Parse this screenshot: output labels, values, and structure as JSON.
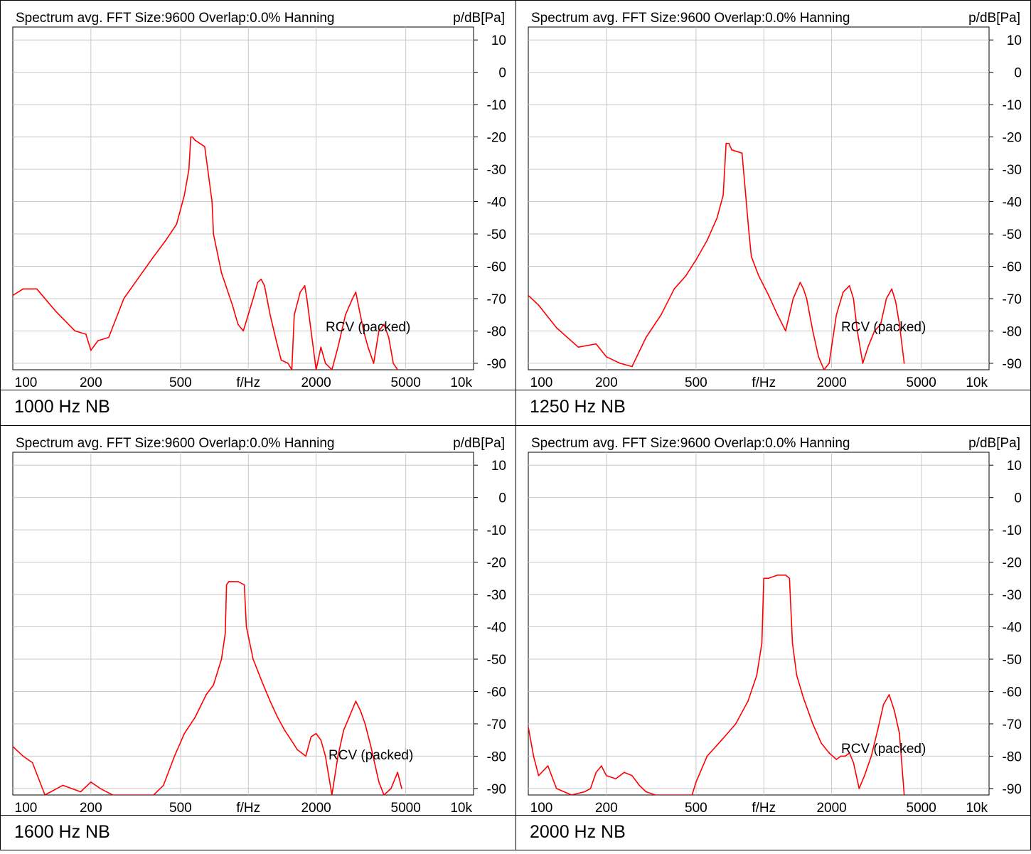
{
  "layout": {
    "captions": [
      "1000 Hz NB",
      "1250 Hz NB",
      "1600 Hz NB",
      "2000 Hz NB"
    ]
  },
  "chart_data": [
    {
      "type": "line",
      "caption": "1000 Hz NB",
      "title": "Spectrum avg.  FFT Size:9600  Overlap:0.0%  Hanning",
      "ylabel": "p/dB[Pa]",
      "xlabel": "f/Hz",
      "xscale": "log",
      "xlim": [
        90,
        10000
      ],
      "ylim": [
        -92,
        14
      ],
      "xticks": [
        "100",
        "200",
        "500",
        "2000",
        "5000",
        "10k"
      ],
      "yticks": [
        "10",
        "0",
        "-10",
        "-20",
        "-30",
        "-40",
        "-50",
        "-60",
        "-70",
        "-80",
        "-90"
      ],
      "grid": true,
      "annotation": "RCV (packed)",
      "line_color": "#ff0000",
      "series": [
        {
          "x": [
            90,
            100,
            115,
            140,
            170,
            190,
            200,
            215,
            240,
            280,
            330,
            380,
            430,
            480,
            520,
            545,
            555,
            565,
            580,
            640,
            690,
            700,
            760,
            850,
            900,
            950,
            1050,
            1100,
            1140,
            1180,
            1250,
            1330,
            1400,
            1500,
            1560,
            1600,
            1700,
            1780,
            1820,
            1900,
            2000,
            2100,
            2200,
            2350,
            2500,
            2700,
            2900,
            3000,
            3100,
            3250,
            3400,
            3600,
            3800,
            4000,
            4200,
            4400,
            4600
          ],
          "y": [
            -69,
            -67,
            -67,
            -74,
            -80,
            -81,
            -86,
            -83,
            -82,
            -70,
            -63,
            -57,
            -52,
            -47,
            -38,
            -30,
            -20,
            -20,
            -21,
            -23,
            -40,
            -50,
            -62,
            -72,
            -78,
            -80,
            -70,
            -65,
            -64,
            -66,
            -75,
            -83,
            -89,
            -90,
            -92,
            -75,
            -68,
            -66,
            -70,
            -80,
            -92,
            -85,
            -90,
            -92,
            -85,
            -75,
            -70,
            -68,
            -73,
            -80,
            -85,
            -90,
            -80,
            -78,
            -82,
            -90,
            -92
          ]
        }
      ]
    },
    {
      "type": "line",
      "caption": "1250 Hz NB",
      "title": "Spectrum avg.  FFT Size:9600  Overlap:0.0%  Hanning",
      "ylabel": "p/dB[Pa]",
      "xlabel": "f/Hz",
      "xscale": "log",
      "xlim": [
        90,
        10000
      ],
      "ylim": [
        -92,
        14
      ],
      "xticks": [
        "100",
        "200",
        "500",
        "2000",
        "5000",
        "10k"
      ],
      "yticks": [
        "10",
        "0",
        "-10",
        "-20",
        "-30",
        "-40",
        "-50",
        "-60",
        "-70",
        "-80",
        "-90"
      ],
      "grid": true,
      "annotation": "RCV (packed)",
      "line_color": "#ff0000",
      "series": [
        {
          "x": [
            90,
            100,
            120,
            150,
            180,
            200,
            230,
            260,
            300,
            350,
            400,
            450,
            500,
            560,
            620,
            660,
            680,
            700,
            720,
            800,
            860,
            880,
            950,
            1050,
            1150,
            1250,
            1350,
            1450,
            1500,
            1550,
            1650,
            1750,
            1850,
            1950,
            2100,
            2250,
            2400,
            2500,
            2600,
            2750,
            2900,
            3100,
            3300,
            3500,
            3700,
            3850,
            4000,
            4200
          ],
          "y": [
            -69,
            -72,
            -79,
            -85,
            -84,
            -88,
            -90,
            -91,
            -82,
            -75,
            -67,
            -63,
            -58,
            -52,
            -45,
            -38,
            -22,
            -22,
            -24,
            -25,
            -50,
            -57,
            -63,
            -69,
            -75,
            -80,
            -70,
            -65,
            -67,
            -70,
            -80,
            -88,
            -92,
            -90,
            -75,
            -68,
            -66,
            -70,
            -80,
            -90,
            -85,
            -80,
            -78,
            -70,
            -67,
            -71,
            -78,
            -90
          ]
        }
      ]
    },
    {
      "type": "line",
      "caption": "1600 Hz NB",
      "title": "Spectrum avg.  FFT Size:9600  Overlap:0.0%  Hanning",
      "ylabel": "p/dB[Pa]",
      "xlabel": "f/Hz",
      "xscale": "log",
      "xlim": [
        90,
        10000
      ],
      "ylim": [
        -92,
        14
      ],
      "xticks": [
        "100",
        "200",
        "500",
        "2000",
        "5000",
        "10k"
      ],
      "yticks": [
        "10",
        "0",
        "-10",
        "-20",
        "-30",
        "-40",
        "-50",
        "-60",
        "-70",
        "-80",
        "-90"
      ],
      "grid": true,
      "annotation": "RCV (packed)",
      "line_color": "#ff0000",
      "series": [
        {
          "x": [
            90,
            100,
            110,
            125,
            150,
            180,
            200,
            220,
            250,
            300,
            380,
            420,
            470,
            520,
            580,
            650,
            700,
            760,
            790,
            800,
            820,
            900,
            960,
            980,
            1050,
            1150,
            1250,
            1350,
            1450,
            1550,
            1650,
            1800,
            1900,
            2000,
            2100,
            2200,
            2350,
            2500,
            2650,
            2800,
            3000,
            3150,
            3300,
            3500,
            3800,
            4000,
            4300,
            4600,
            4800
          ],
          "y": [
            -77,
            -80,
            -82,
            -92,
            -89,
            -91,
            -88,
            -90,
            -92,
            -92,
            -92,
            -89,
            -80,
            -73,
            -68,
            -61,
            -58,
            -50,
            -42,
            -27,
            -26,
            -26,
            -27,
            -40,
            -50,
            -57,
            -63,
            -68,
            -72,
            -75,
            -78,
            -80,
            -74,
            -73,
            -75,
            -80,
            -92,
            -80,
            -72,
            -68,
            -63,
            -66,
            -70,
            -77,
            -88,
            -92,
            -90,
            -85,
            -90
          ]
        }
      ]
    },
    {
      "type": "line",
      "caption": "2000 Hz NB",
      "title": "Spectrum avg.  FFT Size:9600  Overlap:0.0%  Hanning",
      "ylabel": "p/dB[Pa]",
      "xlabel": "f/Hz",
      "xscale": "log",
      "xlim": [
        90,
        10000
      ],
      "ylim": [
        -92,
        14
      ],
      "xticks": [
        "100",
        "200",
        "500",
        "2000",
        "5000",
        "10k"
      ],
      "yticks": [
        "10",
        "0",
        "-10",
        "-20",
        "-30",
        "-40",
        "-50",
        "-60",
        "-70",
        "-80",
        "-90"
      ],
      "grid": true,
      "annotation": "RCV (packed)",
      "line_color": "#ff0000",
      "series": [
        {
          "x": [
            90,
            95,
            100,
            110,
            120,
            140,
            160,
            170,
            180,
            190,
            200,
            220,
            240,
            260,
            280,
            300,
            330,
            380,
            440,
            480,
            500,
            560,
            650,
            750,
            850,
            930,
            980,
            1000,
            1050,
            1150,
            1250,
            1300,
            1340,
            1400,
            1500,
            1650,
            1800,
            1950,
            2100,
            2200,
            2300,
            2400,
            2500,
            2650,
            2800,
            3000,
            3200,
            3400,
            3600,
            3800,
            4000,
            4200
          ],
          "y": [
            -71,
            -80,
            -86,
            -83,
            -90,
            -92,
            -91,
            -90,
            -85,
            -83,
            -86,
            -87,
            -85,
            -86,
            -89,
            -91,
            -92,
            -92,
            -92,
            -92,
            -88,
            -80,
            -75,
            -70,
            -63,
            -55,
            -45,
            -25,
            -25,
            -24,
            -24,
            -25,
            -45,
            -55,
            -62,
            -70,
            -76,
            -79,
            -81,
            -80,
            -80,
            -79,
            -82,
            -90,
            -86,
            -80,
            -72,
            -64,
            -61,
            -66,
            -73,
            -92
          ]
        }
      ]
    }
  ]
}
